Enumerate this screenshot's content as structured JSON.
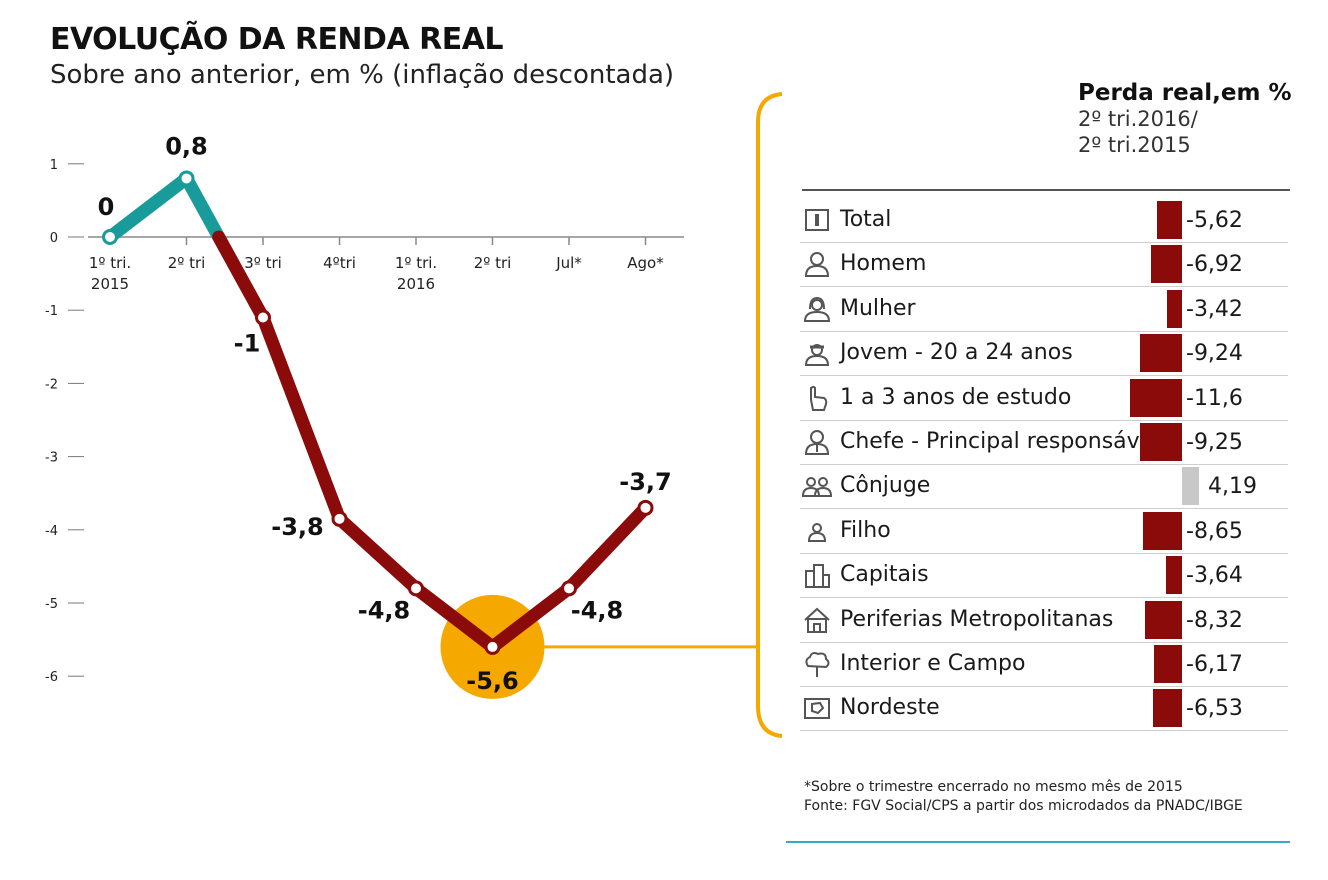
{
  "title": "EVOLUÇÃO DA RENDA REAL",
  "subtitle": "Sobre ano anterior, em % (inflação descontada)",
  "chart_data": [
    {
      "type": "line",
      "y_ticks": [
        "1",
        "0",
        "-1",
        "-2",
        "-3",
        "-4",
        "-5",
        "-6"
      ],
      "ylim": [
        -6,
        1
      ],
      "categories": [
        [
          "1º tri.",
          "2015"
        ],
        [
          "2º tri",
          ""
        ],
        [
          "3º tri",
          ""
        ],
        [
          "4ºtri",
          ""
        ],
        [
          "1º tri.",
          "2016"
        ],
        [
          "2º tri",
          ""
        ],
        [
          "Jul*",
          ""
        ],
        [
          "Ago*",
          ""
        ]
      ],
      "values": [
        0,
        0.8,
        -1.1,
        -3.85,
        -4.8,
        -5.6,
        -4.8,
        -3.7
      ],
      "data_labels": [
        "0",
        "0,8",
        "-1",
        "-3,8",
        "-4,8",
        "-5,6",
        "-4,8",
        "-3,7"
      ],
      "colors": {
        "positive": "#1a9b9b",
        "negative": "#8b0a0a",
        "highlight": "#f5a800"
      },
      "highlight_index": 5
    },
    {
      "type": "bar",
      "title": "Perda real,em %",
      "subtitle_lines": [
        "2º tri.2016/",
        "2º tri.2015"
      ],
      "categories": [
        "Total",
        "Homem",
        "Mulher",
        "Jovem - 20 a 24 anos",
        "1 a 3 anos de estudo",
        "Chefe - Principal responsável",
        "Cônjuge",
        "Filho",
        "Capitais",
        "Periferias Metropolitanas",
        "Interior e Campo",
        "Nordeste"
      ],
      "values": [
        -5.62,
        -6.92,
        -3.42,
        -9.24,
        -11.6,
        -9.25,
        4.19,
        -8.65,
        -3.64,
        -8.32,
        -6.17,
        -6.53
      ],
      "value_labels": [
        "-5,62",
        "-6,92",
        "-3,42",
        "-9,24",
        "-11,6",
        "-9,25",
        "4,19",
        "-8,65",
        "-3,64",
        "-8,32",
        "-6,17",
        "-6,53"
      ],
      "icons": [
        "total-icon",
        "man-icon",
        "woman-icon",
        "youth-icon",
        "finger-icon",
        "head-of-household-icon",
        "couple-icon",
        "child-icon",
        "buildings-icon",
        "house-icon",
        "tree-icon",
        "map-icon"
      ],
      "colors": {
        "negative": "#8b0a0a",
        "positive": "#c8c8c8",
        "bracket": "#f5a800"
      }
    }
  ],
  "footnote_lines": [
    "*Sobre o trimestre encerrado no mesmo mês de 2015",
    "Fonte: FGV Social/CPS a partir dos microdados da PNADC/IBGE"
  ]
}
